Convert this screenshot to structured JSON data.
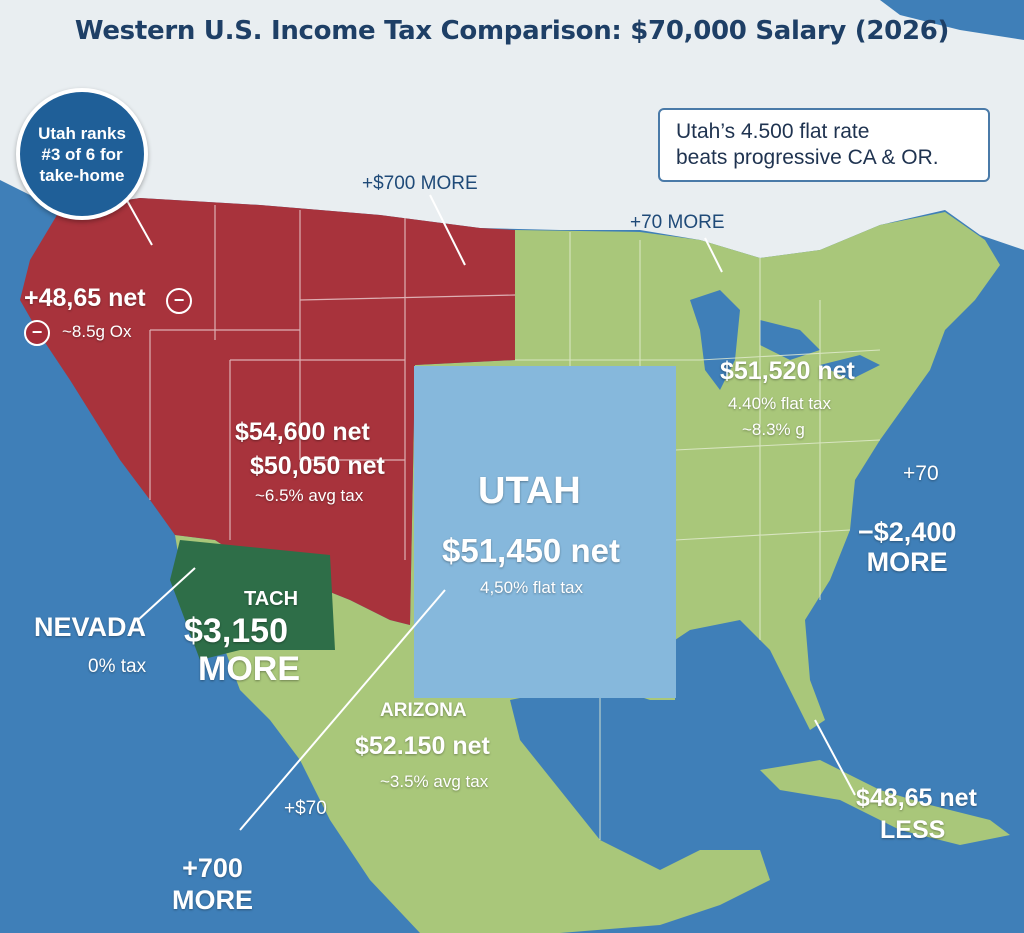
{
  "title": "Western U.S. Income Tax Comparison: $70,000 Salary (2026)",
  "badge": {
    "text": "Utah ranks\n#3 of 6 for\ntake-home"
  },
  "callout": {
    "text": "Utah’s 4.500 flat rate\nbeats progressive CA & OR."
  },
  "colors": {
    "ocean": "#3f7fb8",
    "land": "#a9c77a",
    "red_region": "#a8333c",
    "utah": "#86b8dc",
    "nevada_region": "#2e6e48",
    "canada": "#e8edf0"
  },
  "labels": {
    "nw_net": "+48,65 net",
    "nw_tax": "~8.5g Ox",
    "top_more": "+$700 MORE",
    "mid_more": "+70 MORE",
    "red_net1": "$54,600 net",
    "red_net2": "$50,050 net",
    "red_tax": "~6.5% avg tax",
    "utah_name": "UTAH",
    "utah_net": "$51,450 net",
    "utah_tax": "4,50% flat tax",
    "east_net": "$51,520 net",
    "east_tax": "4.40% flat tax",
    "east_sub": "~8.3% g",
    "east_plus": "+70",
    "east_more": "−$2,400\nMORE",
    "nevada_name": "NEVADA",
    "nevada_tax": "0% tax",
    "tach": "TACH",
    "tach_amount": "$3,150",
    "tach_more": "MORE",
    "arizona_name": "ARIZONA",
    "arizona_net": "$52.150 net",
    "arizona_tax": "~3.5% avg tax",
    "small_plus": "+$70",
    "bottom_more": "+700\nMORE",
    "fl_net": "$48,65 net",
    "fl_less": "LESS",
    "minus": "−"
  }
}
